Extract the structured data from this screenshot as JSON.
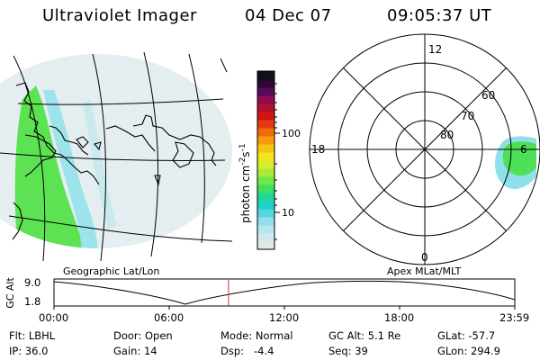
{
  "header": {
    "instrument": "Ultraviolet Imager",
    "date": "04 Dec 07",
    "time": "09:05:37 UT"
  },
  "geo_panel": {
    "label": "Geographic Lat/Lon"
  },
  "polar_panel": {
    "label": "Apex MLat/MLT",
    "mlt_labels": {
      "top": "12",
      "left": "18",
      "right": "6",
      "bottom": "0"
    },
    "lat_labels": [
      "60",
      "70",
      "80"
    ]
  },
  "colorbar": {
    "unit_label": "photon cm",
    "unit_exp1": "-2",
    "unit_mid": "s",
    "unit_exp2": "-1",
    "tick_100": "100",
    "tick_10": "10",
    "colors": [
      "#e6e6e6",
      "#cfe9ef",
      "#b5e8ee",
      "#8fe0ea",
      "#55d6e0",
      "#21d1c9",
      "#1fd79a",
      "#3de062",
      "#6fe845",
      "#a6ea3a",
      "#d6ee2c",
      "#f2e61e",
      "#f7c411",
      "#f69b0a",
      "#ee6b0a",
      "#e23a0f",
      "#cf1515",
      "#b31030",
      "#8f0c52",
      "#5a0a5a",
      "#2a0830",
      "#101018"
    ]
  },
  "altitude_plot": {
    "ylabel": "GC Alt",
    "y_ticks": [
      "9.0",
      "1.8"
    ],
    "x_ticks": [
      "00:00",
      "06:00",
      "12:00",
      "18:00",
      "23:59"
    ],
    "current_time_hours": 9.09
  },
  "info": {
    "flt": "Flt: LBHL",
    "ip": "IP: 36.0",
    "door": "Door: Open",
    "gain": "Gain: 14",
    "mode": "Mode: Normal",
    "dsp": "Dsp:   -4.4",
    "gc_alt": "GC Alt: 5.1 Re",
    "seq": "Seq: 39",
    "glat": "GLat: -57.7",
    "glon": "GLon: 294.9"
  },
  "colors": {
    "accent_green": "#3de062",
    "cyan": "#8fe0ea",
    "marker_red": "#cc3333"
  }
}
